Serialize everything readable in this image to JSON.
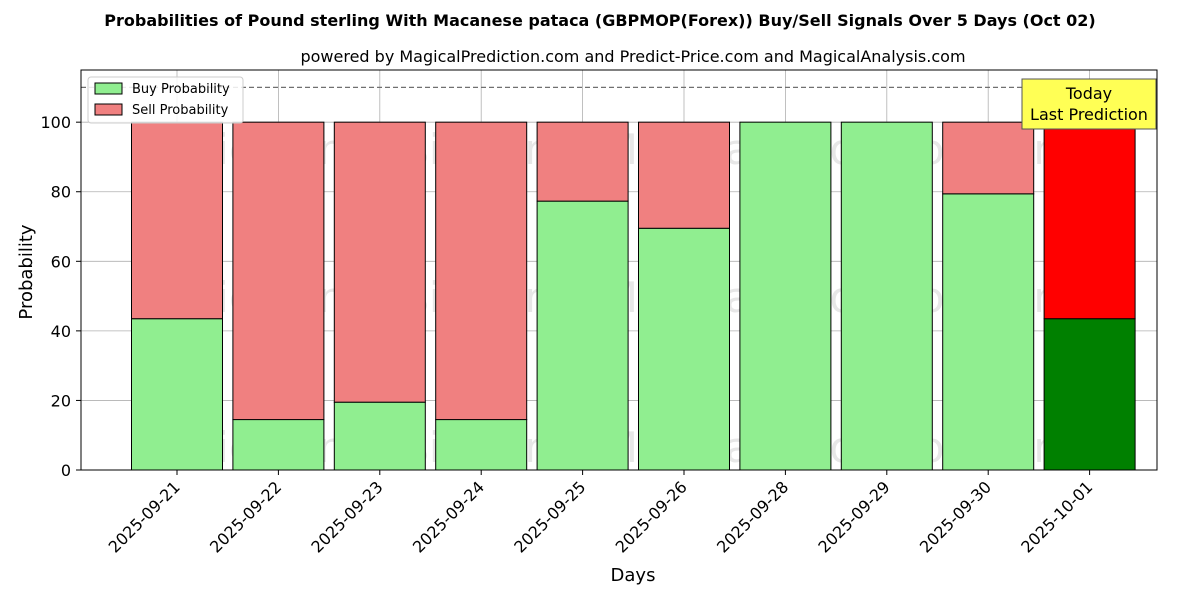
{
  "chart_data": {
    "type": "bar",
    "title": "Probabilities of Pound sterling With Macanese pataca (GBPMOP(Forex)) Buy/Sell Signals Over 5 Days (Oct 02)",
    "subtitle": "powered by MagicalPrediction.com and Predict-Price.com and MagicalAnalysis.com",
    "xlabel": "Days",
    "ylabel": "Probability",
    "ylim": [
      0,
      115
    ],
    "yticks": [
      0,
      20,
      40,
      60,
      80,
      100
    ],
    "categories": [
      "2025-09-21",
      "2025-09-22",
      "2025-09-23",
      "2025-09-24",
      "2025-09-25",
      "2025-09-26",
      "2025-09-28",
      "2025-09-29",
      "2025-09-30",
      "2025-10-01"
    ],
    "series": [
      {
        "name": "Buy Probability",
        "values": [
          43.5,
          14.5,
          19.5,
          14.5,
          77.3,
          69.5,
          100,
          100,
          79.4,
          43.5
        ]
      },
      {
        "name": "Sell Probability",
        "values": [
          56.5,
          85.5,
          80.5,
          85.5,
          22.7,
          30.5,
          0,
          0,
          20.6,
          56.5
        ]
      }
    ],
    "reference_line": 110,
    "grid": true,
    "legend_position": "top-left",
    "annotation": {
      "line1": "Today",
      "line2": "Last Prediction",
      "category": "2025-10-01"
    },
    "watermarks": [
      "MagicalAnalysis.com",
      "MagicalPrediction.com"
    ],
    "colors": {
      "buy": "#90ee90",
      "sell": "#f08080",
      "buy_highlight": "#008000",
      "sell_highlight": "#ff0000",
      "annotation_bg": "#ffff55",
      "edge": "#000000"
    }
  }
}
